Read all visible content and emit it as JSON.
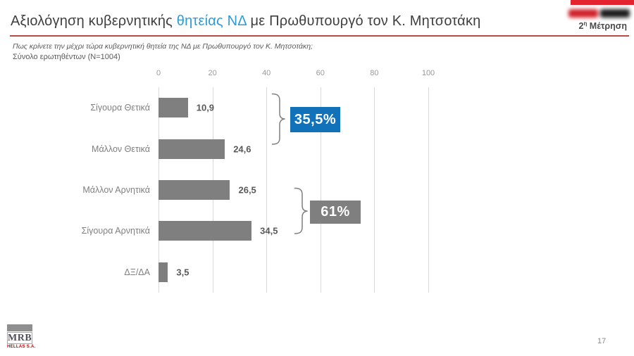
{
  "header": {
    "title_part1": "Αξιολόγηση κυβερνητικής ",
    "title_highlight": "θητείας ΝΔ",
    "title_part2": " με Πρωθυπουργό τον Κ. Μητσοτάκη",
    "measurement_num": "2",
    "measurement_sup": "η",
    "measurement_word": " Μέτρηση"
  },
  "subtitle": {
    "question": "Πως κρίνετε την μέχρι τώρα κυβερνητική θητεία της ΝΔ με Πρωθυπουργό τον Κ. Μητσοτάκη;",
    "sample": "Σύνολο ερωτηθέντων (N=1004)"
  },
  "chart_data": {
    "type": "bar",
    "orientation": "horizontal",
    "categories": [
      "Σίγουρα Θετικά",
      "Μάλλον Θετικά",
      "Μάλλον Αρνητικά",
      "Σίγουρα Αρνητικά",
      "ΔΞ/ΔΑ"
    ],
    "values": [
      10.9,
      24.6,
      26.5,
      34.5,
      3.5
    ],
    "value_labels": [
      "10,9",
      "24,6",
      "26,5",
      "34,5",
      "3,5"
    ],
    "xlim": [
      0,
      100
    ],
    "x_ticks": [
      "0",
      "20",
      "40",
      "60",
      "80",
      "100"
    ],
    "grid": true,
    "legend": false,
    "bar_color": "#7f7f7f",
    "annotations": [
      {
        "label": "35,5%",
        "spans": [
          "Σίγουρα Θετικά",
          "Μάλλον Θετικά"
        ],
        "color": "#1172ba",
        "text_color": "#ffffff"
      },
      {
        "label": "61%",
        "spans": [
          "Μάλλον Αρνητικά",
          "Σίγουρα Αρνητικά"
        ],
        "color": "#7f7f7f",
        "text_color": "#ffffff"
      }
    ]
  },
  "footer": {
    "logo_text": "MRB",
    "logo_subtext": "HELLAS S.A.",
    "page_number": "17"
  },
  "colors": {
    "title_highlight": "#2e9bd5",
    "title_rule": "#b94b47",
    "brand_red_bar": "#e32430",
    "grid_line": "#d9d9d9",
    "bar_gray": "#7f7f7f",
    "annotation_blue": "#1172ba"
  }
}
